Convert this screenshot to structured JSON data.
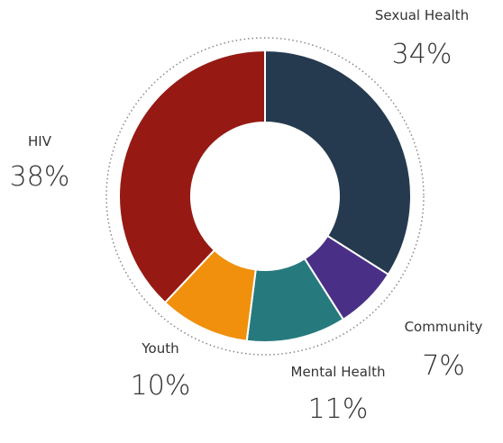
{
  "chart_data": {
    "type": "donut",
    "categories": [
      "Sexual Health",
      "Community",
      "Mental Health",
      "Youth",
      "HIV"
    ],
    "values": [
      34,
      7,
      11,
      10,
      38
    ],
    "value_labels": [
      "34%",
      "7%",
      "11%",
      "10%",
      "38%"
    ],
    "colors": [
      "#263a4f",
      "#4a2f87",
      "#267a7e",
      "#f0900c",
      "#961a13"
    ]
  }
}
